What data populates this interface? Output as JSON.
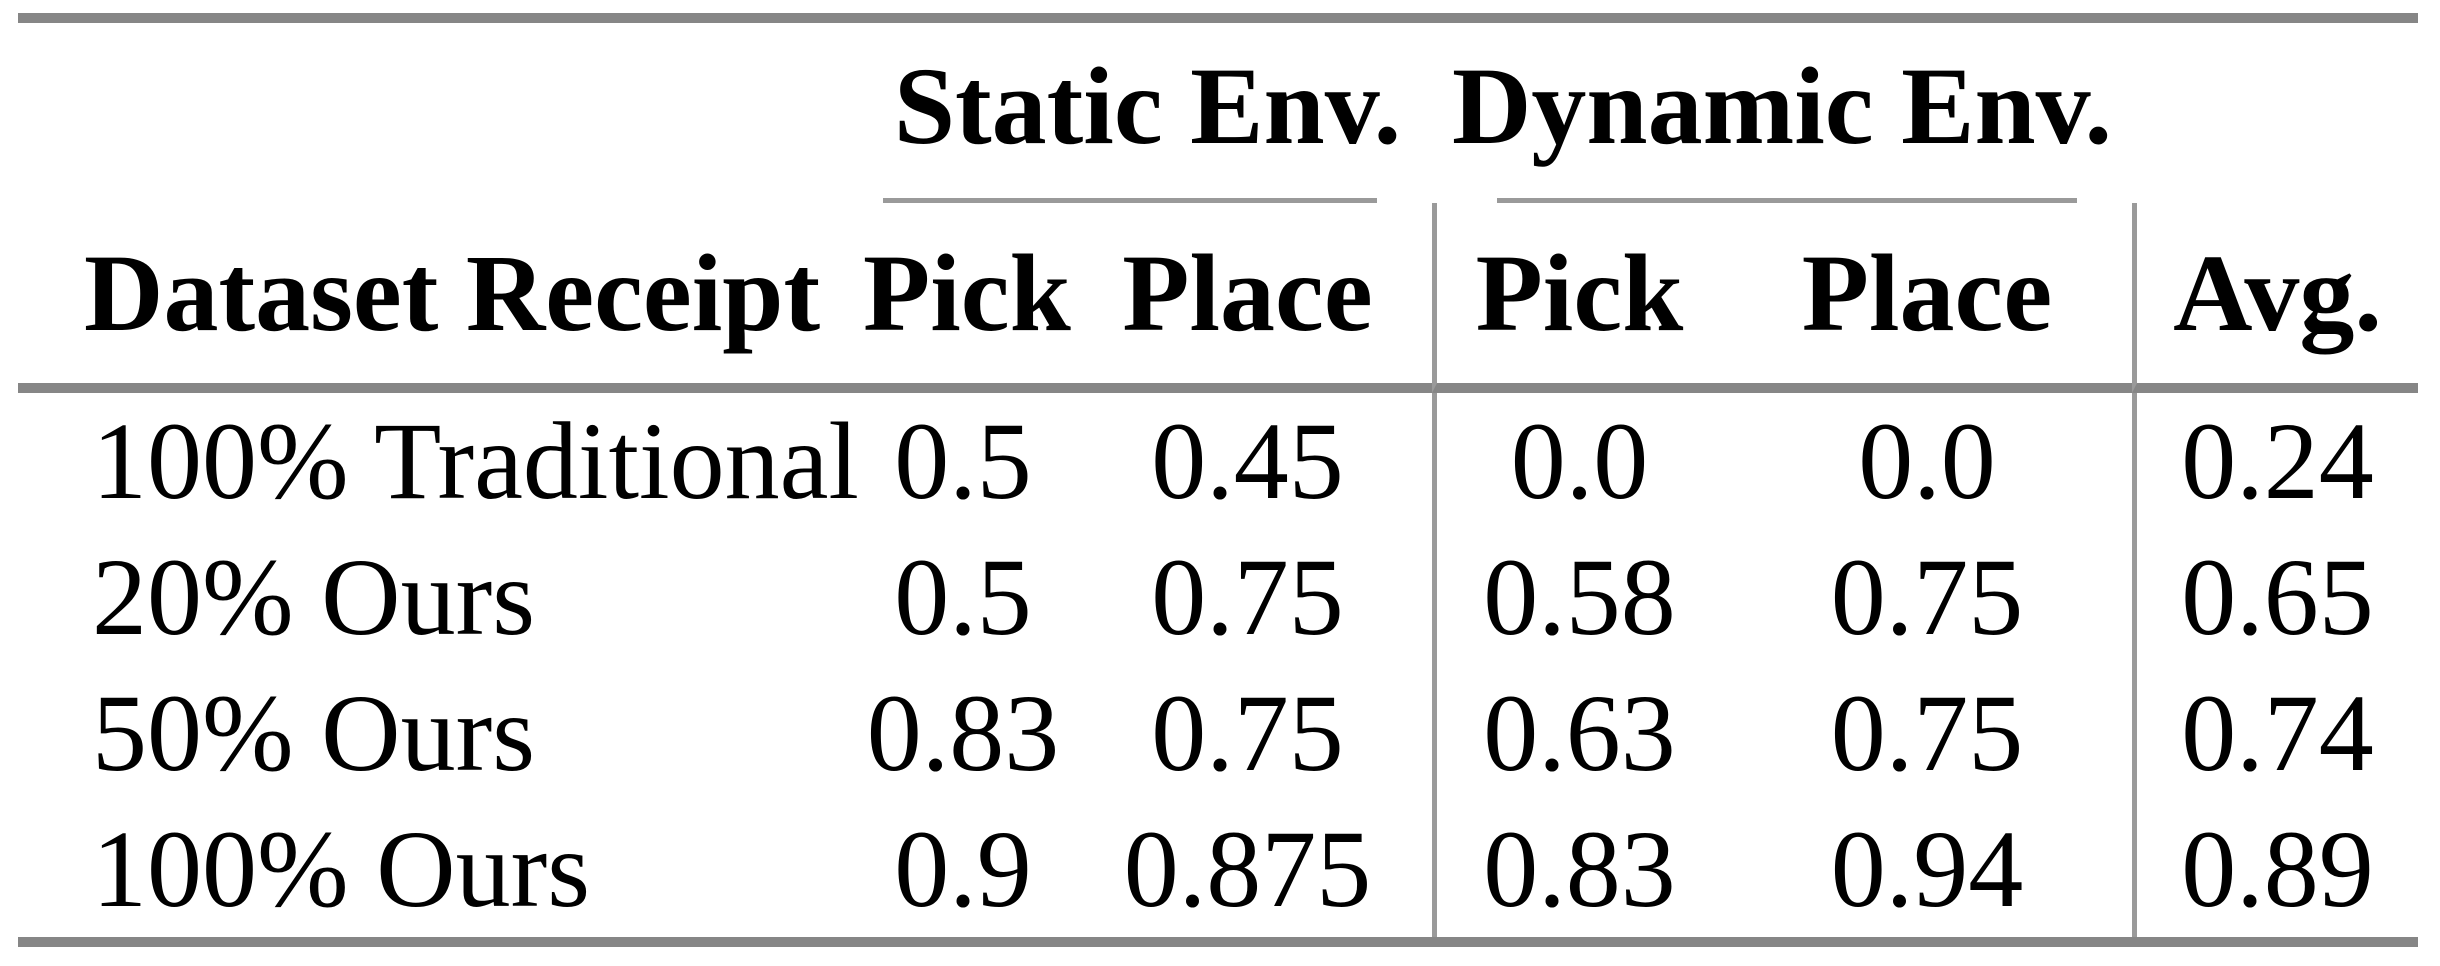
{
  "page": {
    "background_color": "#ffffff",
    "text_color": "#000000",
    "rule_thick_color": "#868686",
    "rule_thin_color": "#9a9a9a"
  },
  "table": {
    "group_headers": [
      {
        "label": "Static Env."
      },
      {
        "label": "Dynamic Env."
      }
    ],
    "columns": {
      "row_label": "Dataset Receipt",
      "static_pick": "Pick",
      "static_place": "Place",
      "dynamic_pick": "Pick",
      "dynamic_place": "Place",
      "avg": "Avg."
    },
    "rows": [
      {
        "label": "100% Traditional",
        "values": [
          "0.5",
          "0.45",
          "0.0",
          "0.0",
          "0.24"
        ]
      },
      {
        "label": "20% Ours",
        "values": [
          "0.5",
          "0.75",
          "0.58",
          "0.75",
          "0.65"
        ]
      },
      {
        "label": "50% Ours",
        "values": [
          "0.83",
          "0.75",
          "0.63",
          "0.75",
          "0.74"
        ]
      },
      {
        "label": "100% Ours",
        "values": [
          "0.9",
          "0.875",
          "0.83",
          "0.94",
          "0.89"
        ]
      }
    ]
  },
  "chart_data": {
    "type": "table",
    "columns": [
      "Dataset Receipt",
      "Static Env. Pick",
      "Static Env. Place",
      "Dynamic Env. Pick",
      "Dynamic Env. Place",
      "Avg."
    ],
    "rows": [
      [
        "100% Traditional",
        0.5,
        0.45,
        0.0,
        0.0,
        0.24
      ],
      [
        "20% Ours",
        0.5,
        0.75,
        0.58,
        0.75,
        0.65
      ],
      [
        "50% Ours",
        0.83,
        0.75,
        0.63,
        0.75,
        0.74
      ],
      [
        "100% Ours",
        0.9,
        0.875,
        0.83,
        0.94,
        0.89
      ]
    ]
  }
}
